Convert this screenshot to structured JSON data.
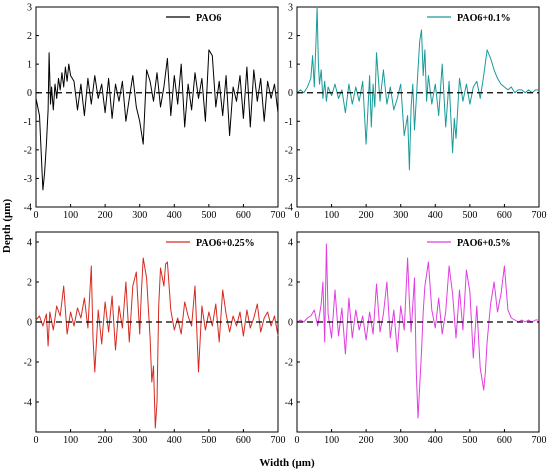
{
  "figure": {
    "ylabel": "Depth (μm)",
    "xlabel": "Width (μm)"
  },
  "chart_data": [
    {
      "type": "line",
      "series": [
        {
          "name": "PAO6",
          "color": "#000000"
        }
      ],
      "x_range": [
        0,
        700
      ],
      "ylim": [
        -4,
        3
      ],
      "yticks": [
        -4,
        -3,
        -2,
        -1,
        0,
        1,
        2,
        3
      ],
      "xticks": [
        0,
        100,
        200,
        300,
        400,
        500,
        600,
        700
      ],
      "reference_line": 0,
      "legend": "top-right",
      "x": [
        0,
        10,
        20,
        25,
        30,
        35,
        38,
        42,
        45,
        50,
        55,
        60,
        65,
        70,
        75,
        80,
        85,
        90,
        95,
        100,
        110,
        120,
        130,
        140,
        150,
        160,
        170,
        180,
        190,
        200,
        210,
        220,
        230,
        240,
        250,
        260,
        270,
        280,
        290,
        300,
        310,
        320,
        330,
        340,
        350,
        360,
        370,
        380,
        390,
        400,
        410,
        420,
        430,
        440,
        450,
        460,
        470,
        480,
        490,
        500,
        510,
        520,
        530,
        540,
        550,
        560,
        570,
        580,
        590,
        600,
        610,
        620,
        630,
        640,
        650,
        660,
        670,
        680,
        690,
        700
      ],
      "y": [
        -0.2,
        -0.8,
        -3.4,
        -2.8,
        -1.8,
        -0.6,
        1.4,
        -0.4,
        0.2,
        -0.6,
        0.3,
        -0.2,
        0.5,
        0.1,
        0.7,
        0.2,
        0.9,
        0.4,
        1.0,
        0.6,
        0.4,
        -0.6,
        0.3,
        -0.8,
        0.5,
        -0.4,
        0.6,
        -0.2,
        0.3,
        -0.7,
        0.5,
        -0.9,
        0.3,
        -0.3,
        0.4,
        -1.0,
        -0.2,
        0.6,
        -0.5,
        -1.0,
        -1.8,
        0.8,
        0.4,
        -0.3,
        0.7,
        -0.5,
        0.2,
        1.2,
        -0.8,
        0.6,
        -0.4,
        1.0,
        -1.2,
        0.3,
        -0.6,
        0.7,
        -0.2,
        0.5,
        -1.0,
        1.5,
        1.3,
        -0.5,
        0.4,
        -0.8,
        0.6,
        -1.5,
        0.2,
        -0.3,
        0.6,
        -0.9,
        0.9,
        -1.2,
        0.8,
        -0.3,
        0.5,
        -1.0,
        0.4,
        -0.2,
        0.3,
        -0.7
      ]
    },
    {
      "type": "line",
      "series": [
        {
          "name": "PAO6+0.1%",
          "color": "#1a9a9a"
        }
      ],
      "x_range": [
        0,
        700
      ],
      "ylim": [
        -4,
        3
      ],
      "yticks": [
        -4,
        -3,
        -2,
        -1,
        0,
        1,
        2,
        3
      ],
      "xticks": [
        0,
        100,
        200,
        300,
        400,
        500,
        600,
        700
      ],
      "reference_line": 0,
      "legend": "top-right",
      "x": [
        0,
        10,
        20,
        30,
        40,
        45,
        50,
        55,
        58,
        62,
        65,
        70,
        75,
        80,
        85,
        90,
        100,
        110,
        120,
        130,
        140,
        150,
        160,
        170,
        180,
        190,
        200,
        205,
        210,
        215,
        220,
        225,
        230,
        240,
        250,
        260,
        270,
        280,
        290,
        300,
        310,
        320,
        325,
        330,
        335,
        340,
        350,
        355,
        360,
        365,
        370,
        375,
        380,
        390,
        400,
        410,
        420,
        430,
        440,
        450,
        455,
        460,
        470,
        480,
        490,
        500,
        510,
        520,
        530,
        540,
        550,
        560,
        570,
        580,
        590,
        600,
        610,
        620,
        630,
        640,
        650,
        660,
        670,
        680,
        690,
        700
      ],
      "y": [
        0.0,
        0.1,
        0.0,
        0.2,
        0.5,
        1.3,
        0.2,
        1.8,
        3.0,
        1.0,
        0.3,
        0.8,
        -0.2,
        0.4,
        -0.3,
        0.2,
        -0.1,
        0.3,
        -0.2,
        0.1,
        -0.7,
        0.3,
        -0.4,
        0.2,
        -0.3,
        0.4,
        -1.8,
        -0.6,
        0.6,
        -1.2,
        0.3,
        -0.5,
        1.4,
        -0.3,
        0.8,
        -0.4,
        0.2,
        -0.6,
        -0.2,
        0.3,
        -1.5,
        -0.8,
        -2.7,
        -0.5,
        0.3,
        -1.3,
        0.8,
        1.8,
        2.2,
        0.6,
        1.5,
        -0.3,
        0.6,
        -0.4,
        0.3,
        -0.8,
        1.0,
        -1.2,
        0.4,
        -2.1,
        -0.9,
        -1.6,
        0.5,
        -0.3,
        0.3,
        -0.4,
        0.2,
        0.4,
        -0.2,
        0.6,
        1.5,
        1.2,
        0.8,
        0.5,
        0.3,
        0.2,
        0.1,
        0.2,
        0.0,
        0.1,
        0.1,
        0.0,
        0.1,
        0.0,
        0.1,
        0.1
      ]
    },
    {
      "type": "line",
      "series": [
        {
          "name": "PAO6+0.25%",
          "color": "#d62a20"
        }
      ],
      "x_range": [
        0,
        700
      ],
      "ylim": [
        -5.5,
        4.5
      ],
      "yticks": [
        -4,
        -2,
        0,
        2,
        4
      ],
      "xticks": [
        0,
        100,
        200,
        300,
        400,
        500,
        600,
        700
      ],
      "reference_line": 0,
      "legend": "top-right",
      "x": [
        0,
        10,
        20,
        30,
        35,
        40,
        50,
        60,
        70,
        80,
        90,
        100,
        110,
        120,
        130,
        140,
        150,
        160,
        165,
        170,
        180,
        190,
        200,
        210,
        220,
        230,
        240,
        250,
        260,
        270,
        280,
        290,
        300,
        305,
        310,
        320,
        330,
        335,
        340,
        345,
        350,
        355,
        360,
        370,
        375,
        380,
        390,
        400,
        410,
        420,
        430,
        440,
        450,
        460,
        470,
        480,
        490,
        500,
        510,
        520,
        530,
        540,
        550,
        560,
        570,
        580,
        590,
        600,
        610,
        620,
        630,
        640,
        650,
        660,
        670,
        680,
        690,
        700
      ],
      "y": [
        0.1,
        0.3,
        -0.2,
        0.4,
        -1.2,
        0.5,
        -0.4,
        0.8,
        0.3,
        1.8,
        -0.6,
        0.5,
        -0.2,
        0.7,
        0.2,
        1.2,
        -0.3,
        2.8,
        -0.8,
        -2.5,
        0.6,
        -1.1,
        1.0,
        -0.5,
        1.3,
        -1.4,
        0.8,
        -0.3,
        2.0,
        -1.0,
        1.8,
        2.5,
        -0.6,
        1.5,
        3.2,
        2.2,
        -0.8,
        -3.0,
        -2.2,
        -5.3,
        -4.0,
        0.8,
        2.7,
        1.8,
        2.9,
        3.0,
        0.6,
        -0.4,
        0.2,
        -0.6,
        1.0,
        0.3,
        -0.2,
        1.8,
        -2.5,
        0.8,
        -0.4,
        0.5,
        -0.2,
        0.9,
        -1.0,
        1.6,
        0.4,
        -0.5,
        0.3,
        -0.2,
        0.5,
        -0.7,
        0.6,
        -0.3,
        0.2,
        0.9,
        -0.5,
        0.2,
        0.5,
        -0.2,
        0.3,
        -0.7
      ]
    },
    {
      "type": "line",
      "series": [
        {
          "name": "PAO6+0.5%",
          "color": "#e03ee0"
        }
      ],
      "x_range": [
        0,
        700
      ],
      "ylim": [
        -5.5,
        4.5
      ],
      "yticks": [
        -4,
        -2,
        0,
        2,
        4
      ],
      "xticks": [
        0,
        100,
        200,
        300,
        400,
        500,
        600,
        700
      ],
      "reference_line": 0,
      "legend": "top-right",
      "x": [
        0,
        10,
        20,
        30,
        40,
        50,
        60,
        70,
        75,
        80,
        85,
        90,
        100,
        110,
        120,
        130,
        140,
        150,
        160,
        170,
        180,
        190,
        200,
        210,
        220,
        230,
        240,
        250,
        260,
        270,
        280,
        290,
        300,
        310,
        320,
        325,
        330,
        340,
        345,
        350,
        355,
        360,
        365,
        370,
        380,
        390,
        400,
        410,
        420,
        430,
        440,
        450,
        460,
        470,
        480,
        490,
        500,
        510,
        520,
        530,
        540,
        545,
        550,
        560,
        570,
        580,
        590,
        600,
        610,
        620,
        630,
        640,
        650,
        660,
        670,
        680,
        690,
        700
      ],
      "y": [
        0.0,
        0.1,
        0.0,
        0.2,
        0.3,
        0.6,
        -0.2,
        0.9,
        2.0,
        -1.0,
        3.9,
        0.4,
        -0.8,
        1.6,
        -0.7,
        0.7,
        -1.6,
        1.2,
        -0.8,
        0.6,
        -0.4,
        0.3,
        -0.9,
        0.5,
        -0.6,
        1.9,
        -0.5,
        0.4,
        2.0,
        -0.8,
        0.6,
        -1.5,
        0.8,
        -0.4,
        3.2,
        1.0,
        -0.5,
        2.2,
        -2.5,
        -4.8,
        -3.2,
        -1.5,
        0.5,
        1.8,
        3.0,
        0.6,
        -0.3,
        1.2,
        -0.6,
        0.5,
        2.8,
        1.4,
        -0.8,
        1.6,
        -0.4,
        2.6,
        1.5,
        -1.8,
        0.8,
        -2.3,
        -3.4,
        -2.5,
        -1.0,
        0.9,
        2.0,
        0.5,
        1.4,
        2.8,
        0.6,
        0.2,
        0.1,
        0.0,
        0.1,
        0.0,
        0.1,
        0.0,
        0.1,
        0.1
      ]
    }
  ]
}
